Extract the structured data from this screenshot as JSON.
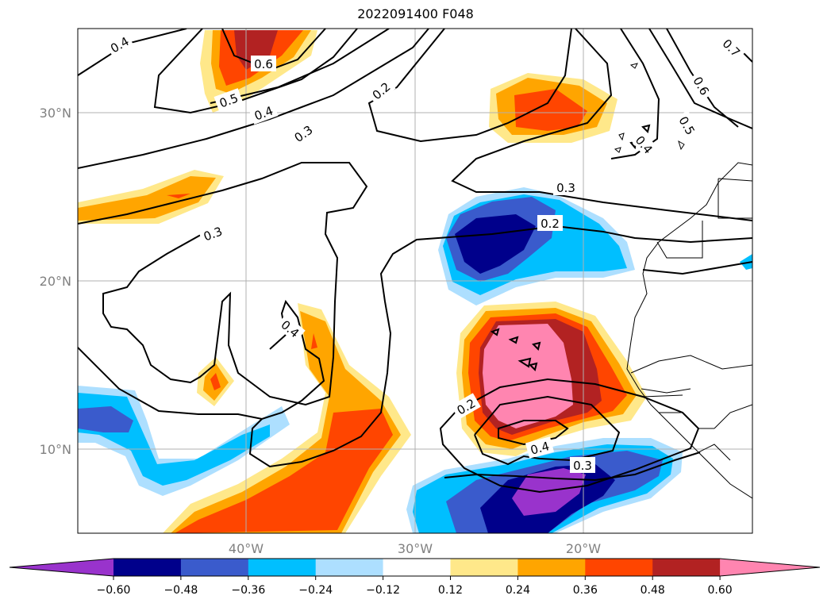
{
  "title": "2022091400 F048",
  "lat_labels": [
    "30°N",
    "20°N",
    "10°N"
  ],
  "lon_labels": [
    "40°W",
    "30°W",
    "20°W"
  ],
  "contour_labels": [
    "0.4",
    "0.6",
    "0.5",
    "0.4",
    "0.3",
    "0.2",
    "0.7",
    "0.6",
    "0.5",
    "0.4",
    "0.3",
    "0.2",
    "0.3",
    "0.4",
    "0.2",
    "0.4",
    "0.3"
  ],
  "colorbar": {
    "ticks": [
      "−0.60",
      "−0.48",
      "−0.36",
      "−0.24",
      "−0.12",
      "0.12",
      "0.24",
      "0.36",
      "0.48",
      "0.60"
    ],
    "colors": [
      "#9933cc",
      "#00008b",
      "#3a5bcc",
      "#00bfff",
      "#addfff",
      "#ffffff",
      "#ffe88a",
      "#ffa500",
      "#ff4500",
      "#b22222",
      "#ff85b0"
    ]
  }
}
